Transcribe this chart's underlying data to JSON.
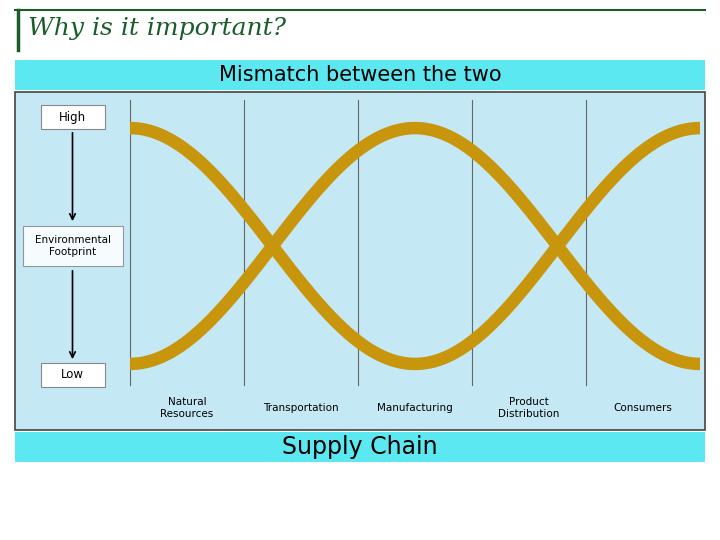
{
  "title": "Why is it important?",
  "subtitle": "Mismatch between the two",
  "footer": "Supply Chain",
  "title_color": "#1a5c2a",
  "title_fontsize": 18,
  "subtitle_fontsize": 15,
  "footer_fontsize": 17,
  "bg_color": "#ffffff",
  "panel_bg": "#c5e8f5",
  "header_bg": "#5ce8f0",
  "curve_color": "#c8960c",
  "curve_linewidth": 9,
  "x_labels": [
    "Natural\nResources",
    "Transportation",
    "Manufacturing",
    "Product\nDistribution",
    "Consumers"
  ],
  "y_label_high": "High",
  "y_label_low": "Low",
  "y_label_mid": "Environmental\nFootprint",
  "grid_color": "#666666",
  "border_color": "#444444"
}
